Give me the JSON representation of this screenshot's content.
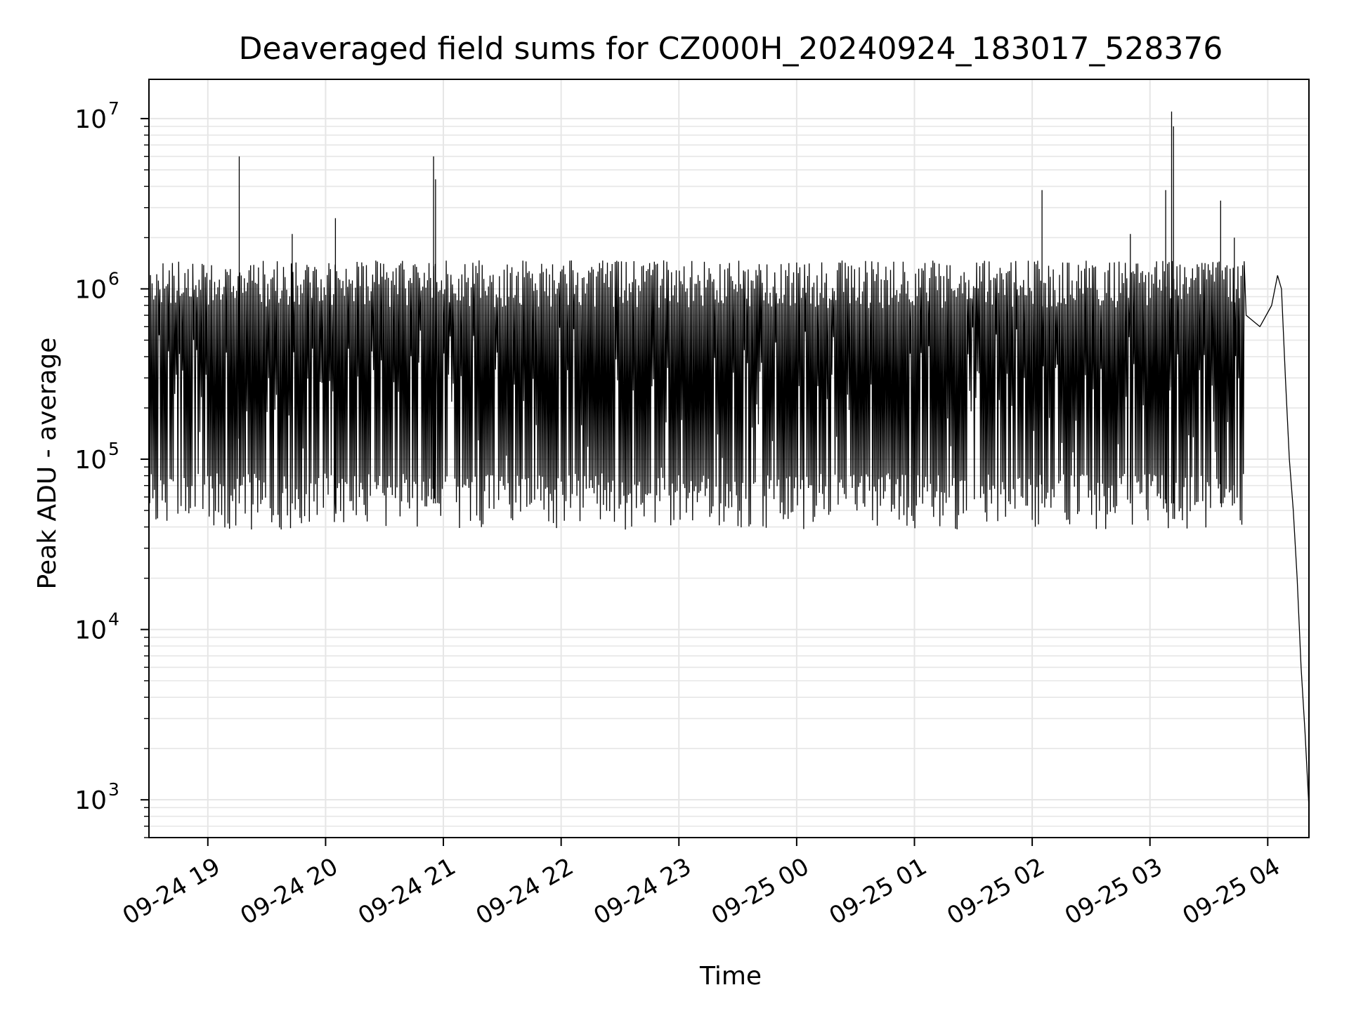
{
  "chart_data": {
    "type": "line",
    "title": "Deaveraged field sums for CZ000H_20240924_183017_528376",
    "xlabel": "Time",
    "ylabel": "Peak ADU - average",
    "yscale": "log",
    "ylim": [
      600,
      17000000
    ],
    "xlim": [
      "2024-09-24 18:30",
      "2024-09-25 04:21"
    ],
    "x_ticks": [
      {
        "t": "2024-09-24 19:00",
        "label": "09-24 19"
      },
      {
        "t": "2024-09-24 20:00",
        "label": "09-24 20"
      },
      {
        "t": "2024-09-24 21:00",
        "label": "09-24 21"
      },
      {
        "t": "2024-09-24 22:00",
        "label": "09-24 22"
      },
      {
        "t": "2024-09-24 23:00",
        "label": "09-24 23"
      },
      {
        "t": "2024-09-25 00:00",
        "label": "09-25 00"
      },
      {
        "t": "2024-09-25 01:00",
        "label": "09-25 01"
      },
      {
        "t": "2024-09-25 02:00",
        "label": "09-25 02"
      },
      {
        "t": "2024-09-25 03:00",
        "label": "09-25 03"
      },
      {
        "t": "2024-09-25 04:00",
        "label": "09-25 04"
      }
    ],
    "y_ticks": [
      {
        "value": 1000,
        "base": "10",
        "exp": "3"
      },
      {
        "value": 10000,
        "base": "10",
        "exp": "4"
      },
      {
        "value": 100000,
        "base": "10",
        "exp": "5"
      },
      {
        "value": 1000000,
        "base": "10",
        "exp": "6"
      },
      {
        "value": 10000000,
        "base": "10",
        "exp": "7"
      }
    ],
    "grid": true,
    "line_color": "#000000",
    "grid_color": "#e6e6e6",
    "series": [
      {
        "envelope": {
          "baseline_low": 55000,
          "baseline_floor": 38000,
          "baseline_high": 1400000,
          "baseline_cap": 1600000,
          "end_of_dense_band": "2024-09-25 03:48"
        },
        "spikes": [
          {
            "t": "2024-09-24 19:16",
            "y": 6000000
          },
          {
            "t": "2024-09-24 19:43",
            "y": 2100000
          },
          {
            "t": "2024-09-24 20:05",
            "y": 2600000
          },
          {
            "t": "2024-09-24 20:55",
            "y": 6000000
          },
          {
            "t": "2024-09-24 20:56",
            "y": 4400000
          },
          {
            "t": "2024-09-25 02:05",
            "y": 3800000
          },
          {
            "t": "2024-09-25 02:50",
            "y": 2100000
          },
          {
            "t": "2024-09-25 03:08",
            "y": 3800000
          },
          {
            "t": "2024-09-25 03:11",
            "y": 11000000
          },
          {
            "t": "2024-09-25 03:12",
            "y": 9000000
          },
          {
            "t": "2024-09-25 03:36",
            "y": 3300000
          },
          {
            "t": "2024-09-25 03:43",
            "y": 2000000
          }
        ],
        "tail": [
          {
            "t": "2024-09-25 03:49",
            "y": 700000
          },
          {
            "t": "2024-09-25 03:56",
            "y": 600000
          },
          {
            "t": "2024-09-25 04:02",
            "y": 800000
          },
          {
            "t": "2024-09-25 04:05",
            "y": 1200000
          },
          {
            "t": "2024-09-25 04:07",
            "y": 1000000
          },
          {
            "t": "2024-09-25 04:09",
            "y": 300000
          },
          {
            "t": "2024-09-25 04:11",
            "y": 100000
          },
          {
            "t": "2024-09-25 04:13",
            "y": 50000
          },
          {
            "t": "2024-09-25 04:15",
            "y": 20000
          },
          {
            "t": "2024-09-25 04:17",
            "y": 6000
          },
          {
            "t": "2024-09-25 04:19",
            "y": 2500
          },
          {
            "t": "2024-09-25 04:21",
            "y": 900
          }
        ]
      }
    ]
  }
}
